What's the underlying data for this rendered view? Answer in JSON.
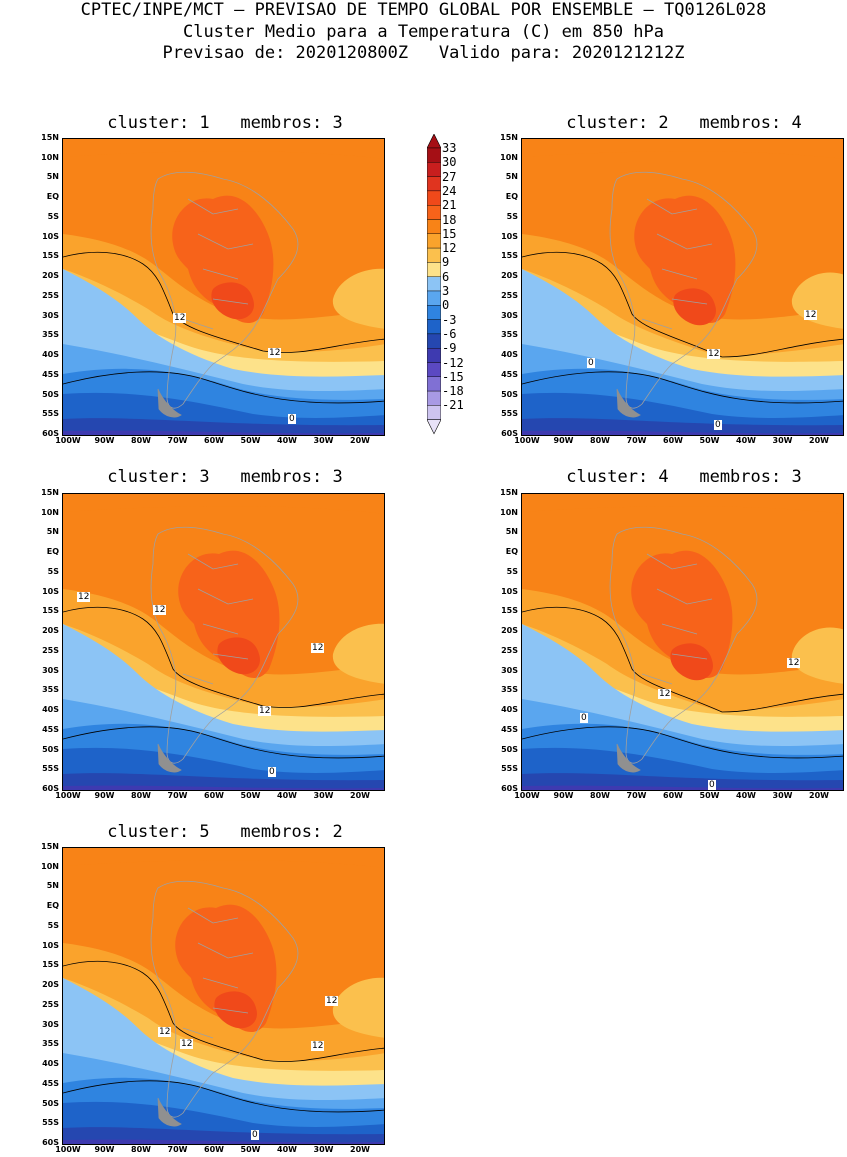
{
  "header": {
    "line1": "CPTEC/INPE/MCT — PREVISAO DE TEMPO GLOBAL POR ENSEMBLE — TQ0126L028",
    "line2": "Cluster Medio para a Temperatura (C) em 850 hPa",
    "line3": "Previsao de: 2020120800Z   Valido para: 2020121212Z"
  },
  "lat_labels": [
    "15N",
    "10N",
    "5N",
    "EQ",
    "5S",
    "10S",
    "15S",
    "20S",
    "25S",
    "30S",
    "35S",
    "40S",
    "45S",
    "50S",
    "55S",
    "60S"
  ],
  "lon_labels": [
    "100W",
    "90W",
    "80W",
    "70W",
    "60W",
    "50W",
    "40W",
    "30W",
    "20W"
  ],
  "panels": [
    {
      "title": "cluster: 1   membros: 3",
      "contours": [
        "12",
        "12",
        "0"
      ]
    },
    {
      "title": "cluster: 2   membros: 4",
      "contours": [
        "12",
        "12",
        "0",
        "0"
      ]
    },
    {
      "title": "cluster: 3   membros: 3",
      "contours": [
        "12",
        "12",
        "12",
        "12",
        "0"
      ]
    },
    {
      "title": "cluster: 4   membros: 3",
      "contours": [
        "12",
        "12",
        "0",
        "0"
      ]
    },
    {
      "title": "cluster: 5   membros: 2",
      "contours": [
        "12",
        "12",
        "12",
        "12",
        "0"
      ]
    }
  ],
  "colorbar": {
    "labels": [
      "33",
      "30",
      "27",
      "24",
      "21",
      "18",
      "15",
      "12",
      "9",
      "6",
      "3",
      "0",
      "-3",
      "-6",
      "-9",
      "-12",
      "-15",
      "-18",
      "-21"
    ],
    "colors": [
      "#a50f15",
      "#c81e1e",
      "#e0341f",
      "#f0491a",
      "#f7631a",
      "#f88317",
      "#faa32c",
      "#fbc04d",
      "#fde28a",
      "#8cc4f5",
      "#5aa6ef",
      "#2f84e0",
      "#1e63c9",
      "#2547b0",
      "#3e3ab0",
      "#5b49c2",
      "#8070d4",
      "#a89ae4",
      "#cdc4f0"
    ],
    "top_color": "#a50f15",
    "bottom_color": "#e8e2f8"
  },
  "colors": {
    "land_border": "#a0a0a0",
    "contour": "#000000"
  }
}
